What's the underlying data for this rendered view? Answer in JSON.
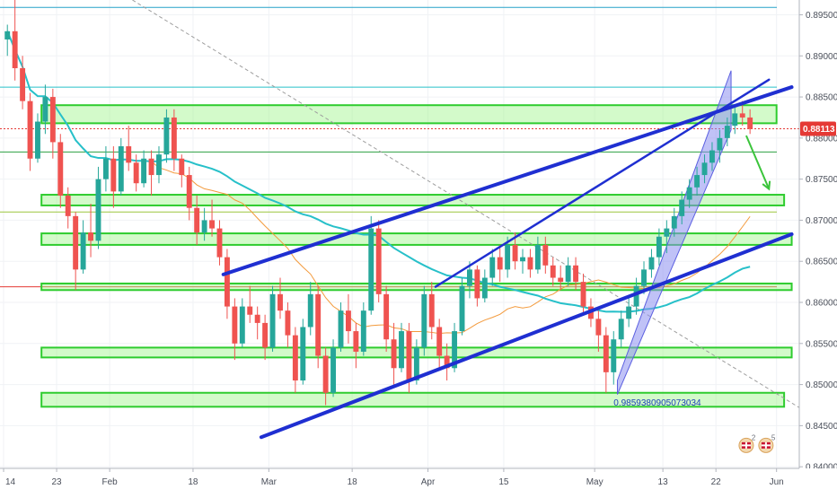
{
  "chart_data": {
    "type": "candlestick",
    "y_axis": {
      "ticks": [
        "0.89500",
        "0.89000",
        "0.88500",
        "0.88000",
        "0.87500",
        "0.87000",
        "0.86500",
        "0.86000",
        "0.85500",
        "0.85000",
        "0.84500",
        "0.84000"
      ],
      "ylim": [
        0.8398,
        0.8968
      ]
    },
    "x_axis": {
      "ticks": [
        {
          "label": "14",
          "i": 0
        },
        {
          "label": "23",
          "i": 7
        },
        {
          "label": "Feb",
          "i": 14
        },
        {
          "label": "18",
          "i": 25
        },
        {
          "label": "Mar",
          "i": 35
        },
        {
          "label": "18",
          "i": 46
        },
        {
          "label": "Apr",
          "i": 56
        },
        {
          "label": "15",
          "i": 66
        },
        {
          "label": "May",
          "i": 78
        },
        {
          "label": "13",
          "i": 87
        },
        {
          "label": "22",
          "i": 94
        },
        {
          "label": "Jun",
          "i": 102
        }
      ],
      "n_slots": 105
    },
    "current_price": {
      "label": "0.88113",
      "value": 0.88113
    },
    "annotation": "0.9859380905073034",
    "key_levels": [
      0.8862,
      0.8783,
      0.871,
      0.8619,
      0.8959
    ],
    "zones": [
      {
        "from_i": 5,
        "to_i": 102,
        "low": 0.8818,
        "high": 0.884
      },
      {
        "from_i": 5,
        "to_i": 103,
        "low": 0.8718,
        "high": 0.8731
      },
      {
        "from_i": 5,
        "to_i": 104,
        "low": 0.867,
        "high": 0.8684
      },
      {
        "from_i": 5,
        "to_i": 104,
        "low": 0.8615,
        "high": 0.8623
      },
      {
        "from_i": 5,
        "to_i": 104,
        "low": 0.8533,
        "high": 0.8545
      },
      {
        "from_i": 5,
        "to_i": 103,
        "low": 0.8473,
        "high": 0.849
      }
    ],
    "trendlines": [
      {
        "from": [
          29,
          0.8634
        ],
        "to": [
          104,
          0.8862
        ],
        "color": "#1f2fd1"
      },
      {
        "from": [
          57,
          0.8619
        ],
        "to": [
          101,
          0.8871
        ],
        "color": "#1f2fd1"
      },
      {
        "from": [
          34,
          0.8436
        ],
        "to": [
          104,
          0.8683
        ],
        "color": "#1f2fd1"
      }
    ],
    "dashed_line": {
      "from": [
        17,
        0.8968
      ],
      "to": [
        105,
        0.8472
      ]
    },
    "channel": {
      "upper": [
        [
          81,
          0.8505
        ],
        [
          96,
          0.8882
        ]
      ],
      "lower": [
        [
          81,
          0.8488
        ],
        [
          96,
          0.881
        ]
      ]
    },
    "forecast_arrow": {
      "from": [
        98,
        0.8803
      ],
      "to": [
        101,
        0.8738
      ]
    },
    "candles": [
      [
        0.892,
        0.8938,
        0.89,
        0.893
      ],
      [
        0.893,
        0.897,
        0.887,
        0.8885
      ],
      [
        0.8885,
        0.89,
        0.8835,
        0.8845
      ],
      [
        0.8845,
        0.8855,
        0.876,
        0.8775
      ],
      [
        0.8775,
        0.883,
        0.877,
        0.882
      ],
      [
        0.882,
        0.8865,
        0.8805,
        0.885
      ],
      [
        0.885,
        0.886,
        0.8775,
        0.8795
      ],
      [
        0.8795,
        0.8805,
        0.8715,
        0.873
      ],
      [
        0.873,
        0.874,
        0.869,
        0.8705
      ],
      [
        0.8705,
        0.871,
        0.8615,
        0.864
      ],
      [
        0.864,
        0.87,
        0.8635,
        0.8685
      ],
      [
        0.8685,
        0.872,
        0.8655,
        0.8675
      ],
      [
        0.8675,
        0.8765,
        0.8665,
        0.875
      ],
      [
        0.875,
        0.879,
        0.8735,
        0.8775
      ],
      [
        0.8775,
        0.879,
        0.8715,
        0.8735
      ],
      [
        0.8735,
        0.88,
        0.873,
        0.879
      ],
      [
        0.879,
        0.8815,
        0.876,
        0.877
      ],
      [
        0.877,
        0.878,
        0.8735,
        0.8745
      ],
      [
        0.8745,
        0.8785,
        0.874,
        0.8775
      ],
      [
        0.8775,
        0.8785,
        0.873,
        0.8755
      ],
      [
        0.8755,
        0.879,
        0.8745,
        0.878
      ],
      [
        0.878,
        0.8835,
        0.877,
        0.8825
      ],
      [
        0.8825,
        0.8835,
        0.876,
        0.8775
      ],
      [
        0.8775,
        0.878,
        0.874,
        0.8755
      ],
      [
        0.8755,
        0.8765,
        0.87,
        0.8715
      ],
      [
        0.8715,
        0.873,
        0.867,
        0.8685
      ],
      [
        0.8685,
        0.8715,
        0.8675,
        0.87
      ],
      [
        0.87,
        0.8725,
        0.868,
        0.869
      ],
      [
        0.869,
        0.87,
        0.8645,
        0.8655
      ],
      [
        0.8655,
        0.8665,
        0.858,
        0.8595
      ],
      [
        0.8595,
        0.8605,
        0.853,
        0.855
      ],
      [
        0.855,
        0.8605,
        0.8545,
        0.8595
      ],
      [
        0.8595,
        0.862,
        0.8575,
        0.8585
      ],
      [
        0.8585,
        0.8595,
        0.8555,
        0.8575
      ],
      [
        0.8575,
        0.8585,
        0.853,
        0.8545
      ],
      [
        0.8545,
        0.862,
        0.854,
        0.861
      ],
      [
        0.861,
        0.863,
        0.858,
        0.859
      ],
      [
        0.859,
        0.86,
        0.8545,
        0.856
      ],
      [
        0.856,
        0.857,
        0.849,
        0.8505
      ],
      [
        0.8505,
        0.858,
        0.85,
        0.857
      ],
      [
        0.857,
        0.8625,
        0.856,
        0.861
      ],
      [
        0.861,
        0.862,
        0.852,
        0.8535
      ],
      [
        0.8535,
        0.8545,
        0.8475,
        0.849
      ],
      [
        0.849,
        0.8555,
        0.8485,
        0.8545
      ],
      [
        0.8545,
        0.86,
        0.854,
        0.859
      ],
      [
        0.859,
        0.861,
        0.855,
        0.8565
      ],
      [
        0.8565,
        0.8575,
        0.852,
        0.854
      ],
      [
        0.854,
        0.86,
        0.8535,
        0.859
      ],
      [
        0.859,
        0.8705,
        0.8585,
        0.869
      ],
      [
        0.869,
        0.87,
        0.86,
        0.861
      ],
      [
        0.861,
        0.862,
        0.854,
        0.8555
      ],
      [
        0.8555,
        0.8575,
        0.85,
        0.852
      ],
      [
        0.852,
        0.8575,
        0.8515,
        0.8565
      ],
      [
        0.8565,
        0.8575,
        0.849,
        0.8505
      ],
      [
        0.8505,
        0.8555,
        0.85,
        0.8545
      ],
      [
        0.8545,
        0.862,
        0.8535,
        0.861
      ],
      [
        0.861,
        0.8625,
        0.8555,
        0.857
      ],
      [
        0.857,
        0.858,
        0.852,
        0.8535
      ],
      [
        0.8535,
        0.855,
        0.8505,
        0.852
      ],
      [
        0.852,
        0.8575,
        0.8515,
        0.8565
      ],
      [
        0.8565,
        0.863,
        0.856,
        0.862
      ],
      [
        0.862,
        0.865,
        0.8605,
        0.864
      ],
      [
        0.864,
        0.8645,
        0.8595,
        0.8605
      ],
      [
        0.8605,
        0.864,
        0.86,
        0.863
      ],
      [
        0.863,
        0.8665,
        0.862,
        0.8655
      ],
      [
        0.8655,
        0.867,
        0.8625,
        0.864
      ],
      [
        0.864,
        0.868,
        0.863,
        0.867
      ],
      [
        0.867,
        0.8685,
        0.864,
        0.865
      ],
      [
        0.865,
        0.8665,
        0.8635,
        0.8655
      ],
      [
        0.8655,
        0.8665,
        0.863,
        0.864
      ],
      [
        0.864,
        0.868,
        0.8635,
        0.867
      ],
      [
        0.867,
        0.868,
        0.8635,
        0.8645
      ],
      [
        0.8645,
        0.8655,
        0.862,
        0.863
      ],
      [
        0.863,
        0.8645,
        0.8615,
        0.8625
      ],
      [
        0.8625,
        0.8655,
        0.862,
        0.8645
      ],
      [
        0.8645,
        0.8655,
        0.8615,
        0.8625
      ],
      [
        0.8625,
        0.8635,
        0.8585,
        0.8595
      ],
      [
        0.8595,
        0.8605,
        0.857,
        0.858
      ],
      [
        0.858,
        0.859,
        0.854,
        0.856
      ],
      [
        0.856,
        0.857,
        0.849,
        0.8515
      ],
      [
        0.8515,
        0.8565,
        0.85,
        0.8555
      ],
      [
        0.8555,
        0.859,
        0.8545,
        0.858
      ],
      [
        0.858,
        0.8605,
        0.857,
        0.8595
      ],
      [
        0.8595,
        0.863,
        0.8585,
        0.862
      ],
      [
        0.862,
        0.865,
        0.861,
        0.864
      ],
      [
        0.864,
        0.8665,
        0.863,
        0.8655
      ],
      [
        0.8655,
        0.869,
        0.8645,
        0.868
      ],
      [
        0.868,
        0.87,
        0.866,
        0.869
      ],
      [
        0.869,
        0.8715,
        0.868,
        0.8705
      ],
      [
        0.8705,
        0.8735,
        0.8695,
        0.8725
      ],
      [
        0.8725,
        0.875,
        0.8715,
        0.874
      ],
      [
        0.874,
        0.8765,
        0.873,
        0.8755
      ],
      [
        0.8755,
        0.878,
        0.8745,
        0.877
      ],
      [
        0.877,
        0.8795,
        0.876,
        0.8785
      ],
      [
        0.8785,
        0.881,
        0.877,
        0.88
      ],
      [
        0.88,
        0.8825,
        0.879,
        0.8815
      ],
      [
        0.8815,
        0.884,
        0.8805,
        0.883
      ],
      [
        0.883,
        0.8845,
        0.8815,
        0.8825
      ],
      [
        0.8825,
        0.8835,
        0.8805,
        0.8811
      ]
    ],
    "moving_averages": [
      {
        "name": "",
        "color": "#f39a3c",
        "period": 20
      },
      {
        "name": "",
        "color": "#27c0c9",
        "period": 50
      }
    ],
    "overlay_icons": [
      {
        "icon": "flag-icon",
        "count": "2"
      },
      {
        "icon": "flag-icon",
        "count": "5"
      }
    ],
    "colors": {
      "up": "#26a69a",
      "down": "#ef5350",
      "zone_fill": "#9ef58a",
      "zone_stroke": "#2ecc2e",
      "trend": "#1f2fd1",
      "channel_fill": "#8c8ff0",
      "arrow": "#3bc43b",
      "price_line": "#e53935"
    }
  }
}
